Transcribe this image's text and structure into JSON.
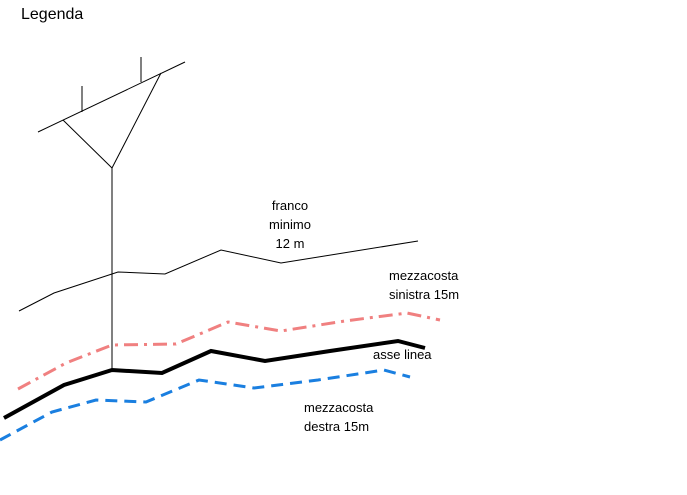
{
  "title": "Legenda",
  "labels": {
    "franco": [
      "franco",
      "minimo",
      "12 m"
    ],
    "mezzacosta_sinistra": [
      "mezzacosta",
      "sinistra 15m"
    ],
    "asse_linea": "asse linea",
    "mezzacosta_destra": [
      "mezzacosta",
      "destra  15m"
    ]
  },
  "colors": {
    "terrain": "#000000",
    "franco": "#000000",
    "mezzacosta_sinistra": "#f08080",
    "asse_linea": "#000000",
    "mezzacosta_destra": "#1a7fe0"
  }
}
